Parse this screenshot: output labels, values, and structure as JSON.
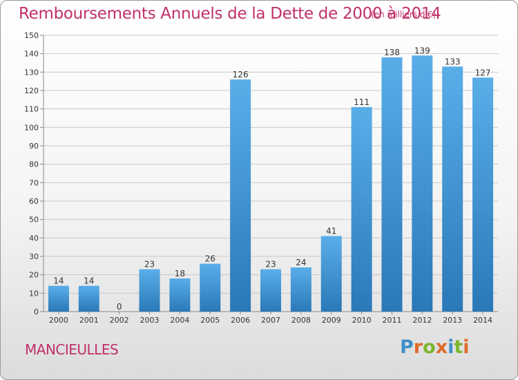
{
  "title": "Remboursements Annuels de la Dette de 2000 à 2014",
  "unit": "(en milliers d'€)",
  "place": "MANCIEULLES",
  "logo": {
    "text": "Proxiti",
    "colors": [
      "#3f8fc8",
      "#e06a2a",
      "#7cb62c",
      "#e06a2a",
      "#3f8fc8",
      "#7cb62c",
      "#e06a2a"
    ]
  },
  "colors": {
    "title": "#c0306a",
    "bar_top": "#5aaee8",
    "bar_bottom": "#2a78b8",
    "grid": "#c8c8c8",
    "axis_text": "#333333"
  },
  "chart_data": {
    "type": "bar",
    "title": "Remboursements Annuels de la Dette de 2000 à 2014",
    "categories": [
      "2000",
      "2001",
      "2002",
      "2003",
      "2004",
      "2005",
      "2006",
      "2007",
      "2008",
      "2009",
      "2010",
      "2011",
      "2012",
      "2013",
      "2014"
    ],
    "values": [
      14,
      14,
      0,
      23,
      18,
      26,
      126,
      23,
      24,
      41,
      111,
      138,
      139,
      133,
      127
    ],
    "ylim": [
      0,
      150
    ],
    "yticks": [
      0,
      10,
      20,
      30,
      40,
      50,
      60,
      70,
      80,
      90,
      100,
      110,
      120,
      130,
      140,
      150
    ],
    "grid": true,
    "xlabel": "",
    "ylabel": ""
  }
}
